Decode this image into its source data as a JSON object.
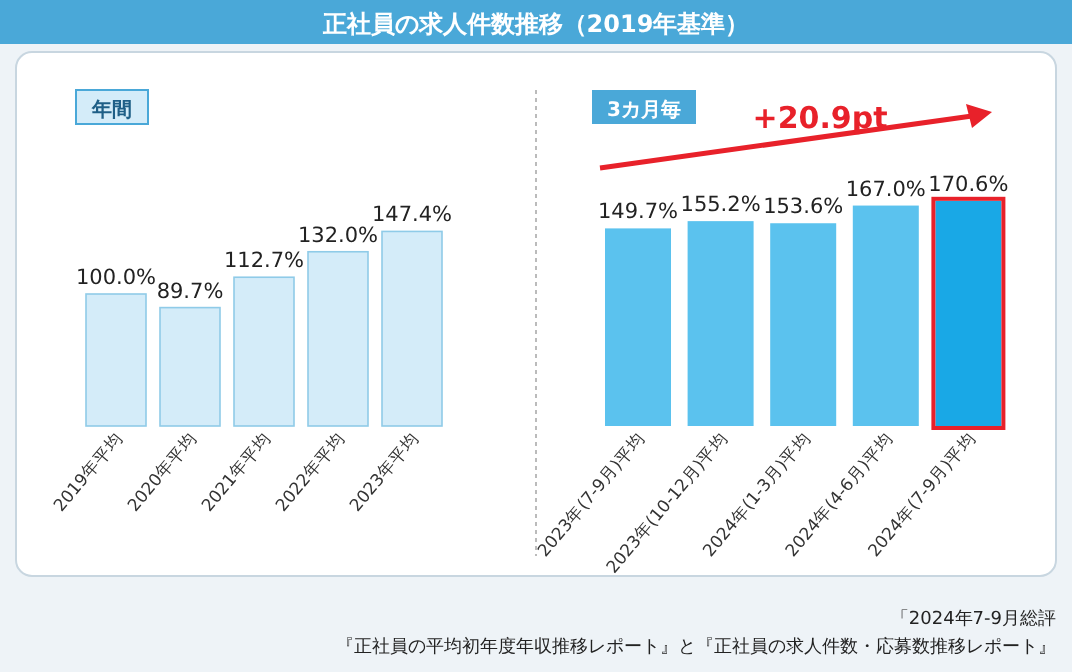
{
  "chart_data": {
    "type": "bar",
    "title": "正社員の求人件数推移（2019年基準）",
    "categories": [
      "2019年平均",
      "2020年平均",
      "2021年平均",
      "2022年平均",
      "2023年平均",
      "2023年(7-9月)平均",
      "2023年(10-12月)平均",
      "2024年(1-3月)平均",
      "2024年(4-6月)平均",
      "2024年(7-9月)平均"
    ],
    "values": [
      100.0,
      89.7,
      112.7,
      132.0,
      147.4,
      149.7,
      155.2,
      153.6,
      167.0,
      170.6
    ],
    "value_labels": [
      "100.0%",
      "89.7%",
      "112.7%",
      "132.0%",
      "147.4%",
      "149.7%",
      "155.2%",
      "153.6%",
      "167.0%",
      "170.6%"
    ],
    "colors": [
      "#d4ecf9",
      "#d4ecf9",
      "#d4ecf9",
      "#d4ecf9",
      "#d4ecf9",
      "#5bc2ee",
      "#5bc2ee",
      "#5bc2ee",
      "#5bc2ee",
      "#19a8e6"
    ],
    "annotations": [
      "年間",
      "3カ月毎",
      "+20.9pt",
      "「2024年7-9月総評",
      "『正社員の平均初年度年収推移レポート』と『正社員の求人件数・応募数推移レポート』"
    ]
  }
}
